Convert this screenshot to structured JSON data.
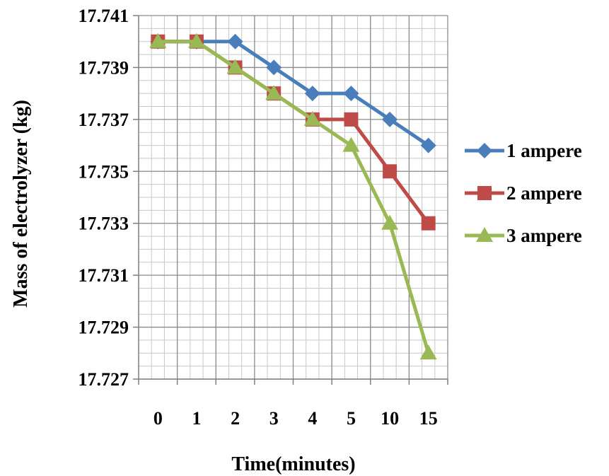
{
  "chart_data": {
    "type": "line",
    "title": "",
    "xlabel": "Time(minutes)",
    "ylabel": "Mass of electrolyzer (kg)",
    "categories": [
      "0",
      "1",
      "2",
      "3",
      "4",
      "5",
      "10",
      "15"
    ],
    "ylim": [
      17.727,
      17.741
    ],
    "yticks": [
      "17.741",
      "17.739",
      "17.737",
      "17.735",
      "17.733",
      "17.731",
      "17.729",
      "17.727"
    ],
    "grid": true,
    "legend_position": "right",
    "series": [
      {
        "name": "1 ampere",
        "color": "#4a7ebb",
        "marker": "diamond",
        "values": [
          17.74,
          17.74,
          17.74,
          17.739,
          17.738,
          17.738,
          17.737,
          17.736
        ]
      },
      {
        "name": "2 ampere",
        "color": "#be4b48",
        "marker": "square",
        "values": [
          17.74,
          17.74,
          17.739,
          17.738,
          17.737,
          17.737,
          17.735,
          17.733
        ]
      },
      {
        "name": "3 ampere",
        "color": "#98b954",
        "marker": "triangle",
        "values": [
          17.74,
          17.74,
          17.739,
          17.738,
          17.737,
          17.736,
          17.733,
          17.728
        ]
      }
    ]
  }
}
